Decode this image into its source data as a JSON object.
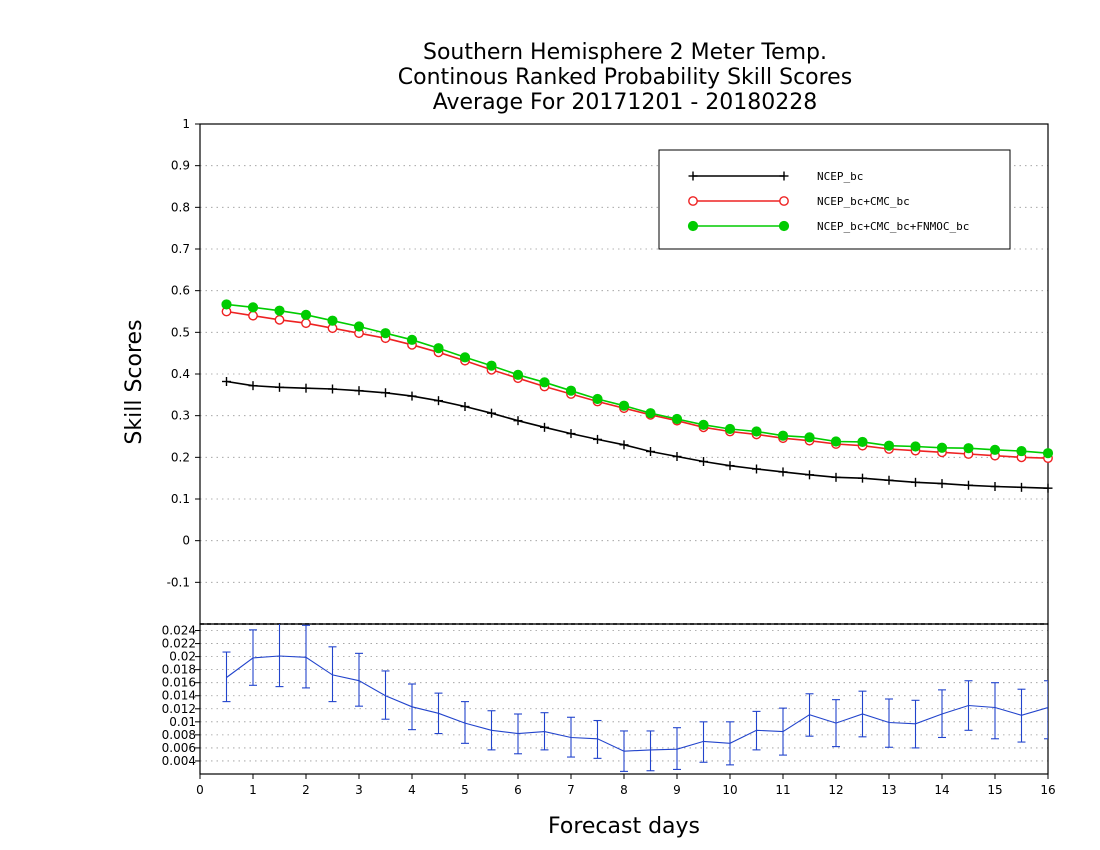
{
  "chart_data": {
    "type": "line",
    "title": [
      "Southern Hemisphere 2 Meter Temp.",
      "Continous Ranked Probability Skill Scores",
      "Average For 20171201 - 20180228"
    ],
    "xlabel": "Forecast days",
    "ylabel": "Skill Scores",
    "xlim": [
      0,
      16
    ],
    "x_ticks": [
      0,
      1,
      2,
      3,
      4,
      5,
      6,
      7,
      8,
      9,
      10,
      11,
      12,
      13,
      14,
      15,
      16
    ],
    "x_tick_labels": [
      "0",
      "1",
      "2",
      "3",
      "4",
      "5",
      "6",
      "7",
      "8",
      "9",
      "10",
      "11",
      "12",
      "13",
      "14",
      "15",
      "16"
    ],
    "grid": true,
    "legend_position": "top-right",
    "main_panel": {
      "ylim": [
        -0.2,
        1.0
      ],
      "y_ticks": [
        -0.1,
        0,
        0.1,
        0.2,
        0.3,
        0.4,
        0.5,
        0.6,
        0.7,
        0.8,
        0.9,
        1
      ],
      "y_tick_labels": [
        "-0.1",
        "0",
        "0.1",
        "0.2",
        "0.3",
        "0.4",
        "0.5",
        "0.6",
        "0.7",
        "0.8",
        "0.9",
        "1"
      ],
      "x": [
        0.5,
        1,
        1.5,
        2,
        2.5,
        3,
        3.5,
        4,
        4.5,
        5,
        5.5,
        6,
        6.5,
        7,
        7.5,
        8,
        8.5,
        9,
        9.5,
        10,
        10.5,
        11,
        11.5,
        12,
        12.5,
        13,
        13.5,
        14,
        14.5,
        15,
        15.5,
        16
      ],
      "series": [
        {
          "name": "NCEP_bc",
          "color": "#000000",
          "marker": "plus",
          "values": [
            0.382,
            0.372,
            0.368,
            0.366,
            0.364,
            0.36,
            0.355,
            0.347,
            0.336,
            0.322,
            0.306,
            0.288,
            0.272,
            0.257,
            0.243,
            0.23,
            0.214,
            0.202,
            0.19,
            0.18,
            0.172,
            0.165,
            0.158,
            0.152,
            0.15,
            0.145,
            0.14,
            0.137,
            0.133,
            0.13,
            0.128,
            0.126
          ]
        },
        {
          "name": "NCEP_bc+CMC_bc",
          "color": "#ee2222",
          "marker": "open-circle",
          "values": [
            0.55,
            0.54,
            0.53,
            0.522,
            0.51,
            0.498,
            0.486,
            0.47,
            0.452,
            0.432,
            0.41,
            0.39,
            0.37,
            0.352,
            0.334,
            0.318,
            0.302,
            0.288,
            0.272,
            0.262,
            0.255,
            0.246,
            0.24,
            0.232,
            0.228,
            0.22,
            0.216,
            0.212,
            0.208,
            0.204,
            0.2,
            0.198
          ]
        },
        {
          "name": "NCEP_bc+CMC_bc+FNMOC_bc",
          "color": "#00cc00",
          "marker": "filled-circle",
          "values": [
            0.567,
            0.56,
            0.552,
            0.542,
            0.528,
            0.514,
            0.498,
            0.482,
            0.462,
            0.44,
            0.42,
            0.398,
            0.38,
            0.36,
            0.34,
            0.324,
            0.306,
            0.292,
            0.278,
            0.268,
            0.262,
            0.252,
            0.248,
            0.238,
            0.237,
            0.228,
            0.226,
            0.223,
            0.222,
            0.218,
            0.215,
            0.21
          ]
        }
      ]
    },
    "difference_panel": {
      "ylim": [
        0.002,
        0.025
      ],
      "y_ticks": [
        0.004,
        0.006,
        0.008,
        0.01,
        0.012,
        0.014,
        0.016,
        0.018,
        0.02,
        0.022,
        0.024
      ],
      "y_tick_labels": [
        "0.004",
        "0.006",
        "0.008",
        "0.01",
        "0.012",
        "0.014",
        "0.016",
        "0.018",
        "0.02",
        "0.022",
        "0.024"
      ],
      "color": "#2244cc",
      "x": [
        0.5,
        1,
        1.5,
        2,
        2.5,
        3,
        3.5,
        4,
        4.5,
        5,
        5.5,
        6,
        6.5,
        7,
        7.5,
        8,
        8.5,
        9,
        9.5,
        10,
        10.5,
        11,
        11.5,
        12,
        12.5,
        13,
        13.5,
        14,
        14.5,
        15,
        15.5,
        16
      ],
      "values": [
        0.0168,
        0.0198,
        0.0201,
        0.0199,
        0.0172,
        0.0163,
        0.014,
        0.0123,
        0.0113,
        0.0098,
        0.0087,
        0.0082,
        0.0085,
        0.0076,
        0.0074,
        0.0055,
        0.0057,
        0.0058,
        0.007,
        0.0067,
        0.0087,
        0.0085,
        0.0111,
        0.0098,
        0.0112,
        0.0099,
        0.0097,
        0.0112,
        0.0125,
        0.0122,
        0.011,
        0.0122
      ],
      "error_low": [
        0.0131,
        0.0156,
        0.0154,
        0.0152,
        0.0131,
        0.0124,
        0.0104,
        0.0088,
        0.0082,
        0.0067,
        0.0057,
        0.0051,
        0.0057,
        0.0046,
        0.0044,
        0.0024,
        0.0025,
        0.0027,
        0.0038,
        0.0034,
        0.0057,
        0.0049,
        0.0078,
        0.0062,
        0.0077,
        0.0061,
        0.006,
        0.0076,
        0.0087,
        0.0074,
        0.0069,
        0.0074
      ],
      "error_high": [
        0.0207,
        0.0241,
        0.0252,
        0.0248,
        0.0215,
        0.0205,
        0.0178,
        0.0158,
        0.0144,
        0.0131,
        0.0117,
        0.0112,
        0.0114,
        0.0107,
        0.0102,
        0.0086,
        0.0086,
        0.0091,
        0.01,
        0.01,
        0.0116,
        0.0121,
        0.0143,
        0.0134,
        0.0147,
        0.0135,
        0.0133,
        0.0149,
        0.0163,
        0.016,
        0.015,
        0.0163
      ]
    }
  }
}
